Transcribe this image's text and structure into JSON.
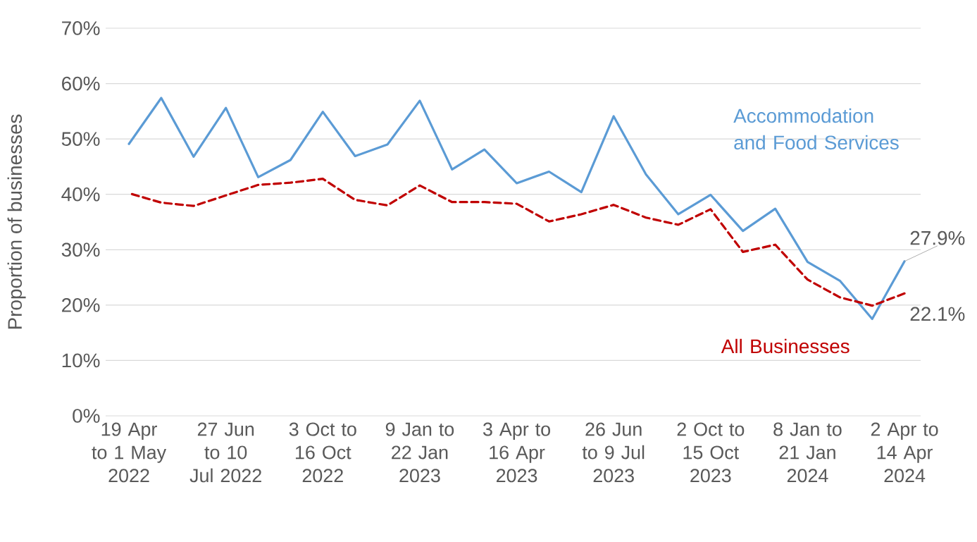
{
  "chart_data": {
    "type": "line",
    "ylabel": "Proportion of businesses",
    "categories": [
      "19 Apr to 1 May 2022",
      null,
      null,
      "27 Jun to 10 Jul 2022",
      null,
      null,
      "3 Oct to 16 Oct 2022",
      null,
      null,
      "9 Jan to 22 Jan 2023",
      null,
      null,
      "3 Apr to 16 Apr 2023",
      null,
      null,
      "26 Jun to 9 Jul 2023",
      null,
      null,
      "2 Oct to 15 Oct 2023",
      null,
      null,
      "8 Jan to 21 Jan 2024",
      null,
      null,
      "2 Apr to 14 Apr 2024"
    ],
    "series": [
      {
        "name": "Accommodation and Food Services",
        "color": "#5b9bd5",
        "line_style": "solid",
        "values": [
          49.1,
          57.4,
          46.8,
          55.6,
          43.1,
          46.2,
          54.9,
          46.9,
          49.0,
          56.9,
          44.5,
          48.1,
          42.0,
          44.1,
          40.4,
          54.1,
          43.6,
          36.4,
          39.9,
          33.4,
          37.4,
          27.8,
          24.4,
          17.5,
          27.9
        ],
        "value_labels": [
          null,
          null,
          null,
          null,
          null,
          null,
          null,
          null,
          null,
          null,
          null,
          null,
          null,
          null,
          null,
          null,
          null,
          null,
          null,
          null,
          null,
          null,
          null,
          null,
          "27.9%"
        ]
      },
      {
        "name": "All Businesses",
        "color": "#c00000",
        "line_style": "dashed",
        "values": [
          40.2,
          38.5,
          37.9,
          39.8,
          41.7,
          42.1,
          42.8,
          39.0,
          38.0,
          41.6,
          38.6,
          38.6,
          38.3,
          35.1,
          36.4,
          38.1,
          35.8,
          34.5,
          37.3,
          29.6,
          30.9,
          24.6,
          21.4,
          19.9,
          22.1
        ],
        "value_labels": [
          null,
          null,
          null,
          null,
          null,
          null,
          null,
          null,
          null,
          null,
          null,
          null,
          null,
          null,
          null,
          null,
          null,
          null,
          null,
          null,
          null,
          null,
          null,
          null,
          "22.1%"
        ]
      }
    ],
    "ylim": [
      0,
      70
    ],
    "yticks": [
      {
        "value": 0,
        "label": "0%"
      },
      {
        "value": 10,
        "label": "10%"
      },
      {
        "value": 20,
        "label": "20%"
      },
      {
        "value": 30,
        "label": "30%"
      },
      {
        "value": 40,
        "label": "40%"
      },
      {
        "value": 50,
        "label": "50%"
      },
      {
        "value": 60,
        "label": "60%"
      },
      {
        "value": 70,
        "label": "70%"
      }
    ],
    "grid": "y",
    "legend": false
  }
}
